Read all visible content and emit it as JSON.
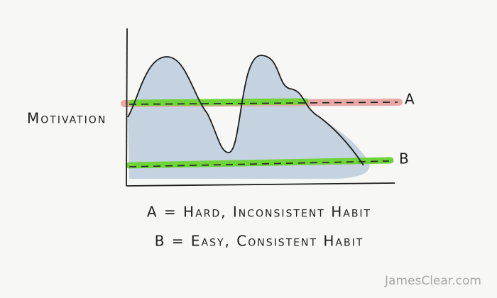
{
  "diagram": {
    "y_axis_label": "Motivation",
    "line_a_label": "A",
    "line_b_label": "B",
    "legend": [
      "A = Hard, Inconsistent Habit",
      "B = Easy, Consistent Habit"
    ],
    "watermark": "JamesClear.com"
  }
}
